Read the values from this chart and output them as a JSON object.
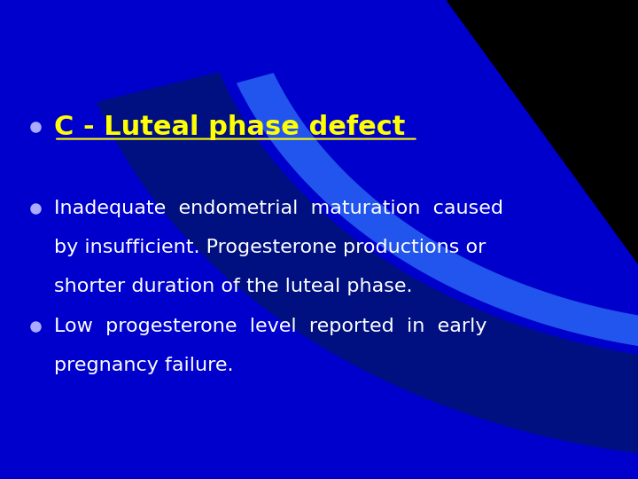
{
  "bg_color": "#0000CC",
  "title_text": "C - Luteal phase defect",
  "title_color": "#FFFF00",
  "bullet_color": "#AAAAFF",
  "body_color": "#FFFFFF",
  "bullet1_lines": [
    "Inadequate  endometrial  maturation  caused",
    "by insufficient. Progesterone productions or",
    "shorter duration of the luteal phase."
  ],
  "bullet2_lines": [
    "Low  progesterone  level  reported  in  early",
    "pregnancy failure."
  ]
}
